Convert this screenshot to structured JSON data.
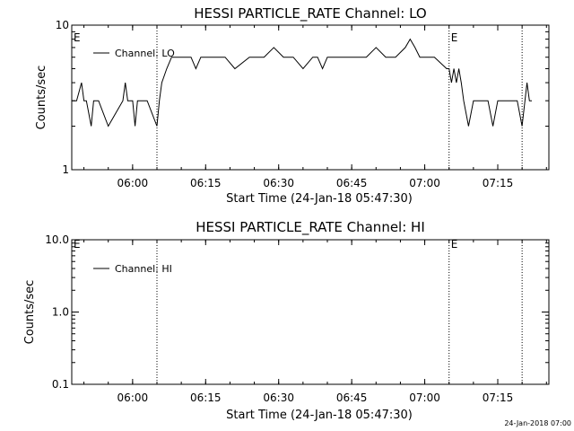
{
  "chart_data": [
    {
      "type": "line",
      "title": "HESSI PARTICLE_RATE Channel: LO",
      "xlabel": "Start Time (24-Jan-18 05:47:30)",
      "ylabel": "Counts/sec",
      "yscale": "log",
      "ylim": [
        1,
        10
      ],
      "ytick_values": [
        1,
        10
      ],
      "ytick_labels": [
        "1",
        "10"
      ],
      "xlim": [
        "05:47:30",
        "07:25:30"
      ],
      "xtick_labels": [
        "06:00",
        "06:15",
        "06:30",
        "06:45",
        "07:00",
        "07:15"
      ],
      "grid": false,
      "legend_position": "top-left",
      "series": [
        {
          "name": "Channel: LO",
          "x": [
            "05:47:30",
            "05:48:30",
            "05:49:30",
            "05:50:00",
            "05:50:30",
            "05:51:30",
            "05:52:00",
            "05:52:30",
            "05:53:00",
            "05:55:00",
            "05:58:00",
            "05:58:30",
            "05:59:00",
            "05:59:30",
            "06:00:00",
            "06:00:30",
            "06:01:00",
            "06:03:00",
            "06:05:00",
            "06:05:30",
            "06:06:00",
            "06:07:00",
            "06:08:00",
            "06:10:00",
            "06:12:00",
            "06:13:00",
            "06:14:00",
            "06:15:00",
            "06:17:00",
            "06:19:00",
            "06:21:00",
            "06:24:00",
            "06:27:00",
            "06:29:00",
            "06:31:00",
            "06:33:00",
            "06:35:00",
            "06:37:00",
            "06:38:00",
            "06:39:00",
            "06:40:00",
            "06:42:00",
            "06:44:00",
            "06:46:00",
            "06:48:00",
            "06:50:00",
            "06:52:00",
            "06:54:00",
            "06:56:00",
            "06:57:00",
            "06:58:00",
            "06:59:00",
            "07:00:00",
            "07:01:00",
            "07:02:00",
            "07:04:30",
            "07:05:00",
            "07:05:30",
            "07:06:00",
            "07:06:30",
            "07:07:00",
            "07:07:30",
            "07:08:00",
            "07:09:00",
            "07:10:00",
            "07:11:00",
            "07:12:00",
            "07:13:00",
            "07:14:00",
            "07:15:00",
            "07:16:00",
            "07:17:00",
            "07:18:00",
            "07:19:00",
            "07:20:00",
            "07:21:00",
            "07:21:30",
            "07:22:00"
          ],
          "values": [
            3,
            3,
            4,
            3,
            3,
            2,
            3,
            3,
            3,
            2,
            3,
            4,
            3,
            3,
            3,
            2,
            3,
            3,
            2,
            3,
            4,
            5,
            6,
            6,
            6,
            5,
            6,
            6,
            6,
            6,
            5,
            6,
            6,
            7,
            6,
            6,
            5,
            6,
            6,
            5,
            6,
            6,
            6,
            6,
            6,
            7,
            6,
            6,
            7,
            8,
            7,
            6,
            6,
            6,
            6,
            5,
            5,
            4,
            5,
            4,
            5,
            4,
            3,
            2,
            3,
            3,
            3,
            3,
            2,
            3,
            3,
            3,
            3,
            3,
            2,
            4,
            3,
            3
          ],
          "color": "#000000"
        }
      ],
      "annotations": [
        {
          "text": "E",
          "x": "05:47:30",
          "position": "top"
        },
        {
          "text": "E",
          "x": "07:05:00",
          "position": "top"
        }
      ],
      "vlines": [
        "06:05:00",
        "07:05:00",
        "07:20:00"
      ]
    },
    {
      "type": "line",
      "title": "HESSI PARTICLE_RATE Channel: HI",
      "xlabel": "Start Time (24-Jan-18 05:47:30)",
      "ylabel": "Counts/sec",
      "yscale": "log",
      "ylim": [
        0.1,
        10
      ],
      "ytick_values": [
        0.1,
        1,
        10
      ],
      "ytick_labels": [
        "0.1",
        "1.0",
        "10.0"
      ],
      "xlim": [
        "05:47:30",
        "07:25:30"
      ],
      "xtick_labels": [
        "06:00",
        "06:15",
        "06:30",
        "06:45",
        "07:00",
        "07:15"
      ],
      "grid": false,
      "legend_position": "top-left",
      "series": [
        {
          "name": "Channel: HI",
          "x": [],
          "values": [],
          "color": "#000000"
        }
      ],
      "annotations": [
        {
          "text": "E",
          "x": "05:47:30",
          "position": "top"
        },
        {
          "text": "E",
          "x": "07:05:00",
          "position": "top"
        }
      ],
      "vlines": [
        "06:05:00",
        "07:05:00",
        "07:20:00"
      ]
    }
  ],
  "footer": {
    "timestamp": "24-Jan-2018 07:00"
  }
}
